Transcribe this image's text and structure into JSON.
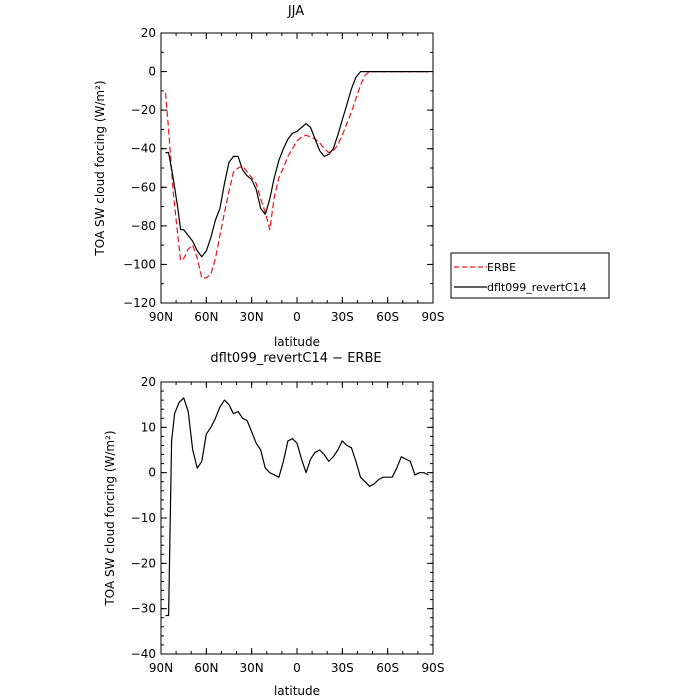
{
  "chart_data": [
    {
      "type": "line",
      "title": "JJA",
      "xlabel": "latitude",
      "ylabel": "TOA SW cloud forcing (W/m²)",
      "xlim": [
        90,
        -90
      ],
      "ylim": [
        -120,
        20
      ],
      "x_tick_labels": [
        "90N",
        "60N",
        "30N",
        "0",
        "30S",
        "60S",
        "90S"
      ],
      "x_tick_values": [
        90,
        60,
        30,
        0,
        -30,
        -60,
        -90
      ],
      "y_tick_values": [
        -120,
        -100,
        -80,
        -60,
        -40,
        -20,
        0,
        20
      ],
      "legend_position": "outside-right",
      "series": [
        {
          "name": "ERBE",
          "color": "#e8141a",
          "dash": "dashed",
          "x": [
            87,
            85,
            82,
            79,
            77,
            75,
            72,
            69,
            66,
            63,
            60,
            57,
            54,
            51,
            48,
            45,
            42,
            39,
            36,
            33,
            30,
            27,
            24,
            21,
            18,
            15,
            12,
            9,
            6,
            3,
            0,
            -3,
            -6,
            -9,
            -12,
            -15,
            -18,
            -21,
            -24,
            -27,
            -30,
            -33,
            -36,
            -39,
            -42,
            -45,
            -48,
            -51,
            -54,
            -57,
            -60,
            -63,
            -66,
            -69,
            -72,
            -75,
            -78,
            -81,
            -84,
            -87
          ],
          "y": [
            -11,
            -30,
            -62,
            -84,
            -98,
            -97,
            -92,
            -90,
            -97,
            -107,
            -107,
            -105,
            -97,
            -85,
            -73,
            -62,
            -52,
            -50,
            -49,
            -52,
            -55,
            -58,
            -66,
            -73,
            -82,
            -65,
            -55,
            -50,
            -44,
            -40,
            -36,
            -34,
            -33,
            -34,
            -35,
            -37,
            -40,
            -42,
            -41,
            -38,
            -33,
            -27,
            -21,
            -14,
            -7,
            -2,
            0,
            0,
            0,
            0,
            0,
            0,
            0,
            0,
            0,
            0,
            0,
            0,
            0,
            0
          ]
        },
        {
          "name": "dflt099_revertC14",
          "color": "#000000",
          "dash": "solid",
          "x": [
            87,
            85,
            82,
            79,
            77,
            75,
            72,
            69,
            66,
            63,
            60,
            57,
            54,
            51,
            48,
            45,
            42,
            39,
            36,
            33,
            30,
            27,
            24,
            21,
            18,
            15,
            12,
            9,
            6,
            3,
            0,
            -3,
            -6,
            -9,
            -12,
            -15,
            -18,
            -21,
            -24,
            -27,
            -30,
            -33,
            -36,
            -39,
            -42,
            -45,
            -48,
            -51,
            -54,
            -57,
            -60,
            -63,
            -66,
            -69,
            -72,
            -75,
            -78,
            -81,
            -84,
            -87
          ],
          "y": [
            -42,
            -42,
            -55,
            -70,
            -82,
            -82,
            -85,
            -88,
            -93,
            -96,
            -93,
            -86,
            -77,
            -71,
            -58,
            -47,
            -44,
            -44,
            -51,
            -54,
            -56,
            -61,
            -71,
            -74,
            -66,
            -55,
            -46,
            -40,
            -35,
            -32,
            -31,
            -29,
            -27,
            -29,
            -35,
            -41,
            -44,
            -43,
            -40,
            -33,
            -25,
            -17,
            -9,
            -3,
            0,
            0,
            0,
            0,
            0,
            0,
            0,
            0,
            0,
            0,
            0,
            0,
            0,
            0,
            0,
            0
          ]
        }
      ]
    },
    {
      "type": "line",
      "title": "dflt099_revertC14 − ERBE",
      "xlabel": "latitude",
      "ylabel": "TOA SW cloud forcing (W/m²)",
      "xlim": [
        90,
        -90
      ],
      "ylim": [
        -40,
        20
      ],
      "x_tick_labels": [
        "90N",
        "60N",
        "30N",
        "0",
        "30S",
        "60S",
        "90S"
      ],
      "x_tick_values": [
        90,
        60,
        30,
        0,
        -30,
        -60,
        -90
      ],
      "y_tick_values": [
        -40,
        -30,
        -20,
        -10,
        0,
        10,
        20
      ],
      "series": [
        {
          "color": "#000000",
          "x": [
            87,
            85,
            83,
            81,
            78,
            75,
            72,
            69,
            66,
            63,
            60,
            57,
            54,
            51,
            48,
            45,
            42,
            39,
            36,
            33,
            30,
            27,
            24,
            21,
            18,
            15,
            12,
            9,
            6,
            3,
            0,
            -3,
            -6,
            -9,
            -12,
            -15,
            -18,
            -21,
            -24,
            -27,
            -30,
            -33,
            -36,
            -39,
            -42,
            -45,
            -48,
            -51,
            -54,
            -57,
            -60,
            -63,
            -66,
            -69,
            -72,
            -75,
            -78,
            -81,
            -84,
            -87
          ],
          "y": [
            -31.5,
            -31.5,
            7,
            13,
            15.5,
            16.5,
            13.5,
            5,
            1,
            2.5,
            8.5,
            10,
            12,
            14.5,
            16,
            15,
            13,
            13.5,
            12,
            11.5,
            9,
            6.5,
            5,
            1,
            0,
            -0.5,
            -1,
            2.5,
            7,
            7.5,
            6.5,
            3,
            0,
            3,
            4.5,
            5,
            4,
            2.5,
            3.5,
            5,
            7,
            6,
            5.5,
            2.5,
            -1,
            -2,
            -3,
            -2.5,
            -1.5,
            -1,
            -1,
            -1,
            1,
            3.5,
            3,
            2.5,
            -0.5,
            0,
            0,
            -0.5
          ]
        }
      ]
    }
  ]
}
